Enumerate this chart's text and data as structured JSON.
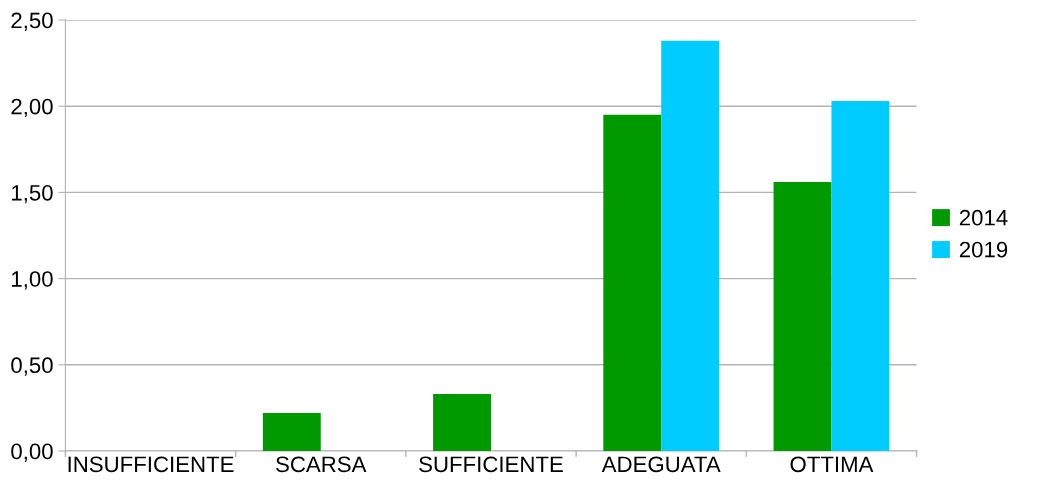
{
  "chart_data": {
    "type": "bar",
    "categories": [
      "INSUFFICIENTE",
      "SCARSA",
      "SUFFICIENTE",
      "ADEGUATA",
      "OTTIMA"
    ],
    "series": [
      {
        "name": "2014",
        "color": "#009900",
        "values": [
          0,
          0.22,
          0.33,
          1.95,
          1.56
        ]
      },
      {
        "name": "2019",
        "color": "#00ccff",
        "values": [
          0,
          0,
          0,
          2.38,
          2.03
        ]
      }
    ],
    "ylim": [
      0,
      2.5
    ],
    "yticks": [
      {
        "value": 0,
        "label": "0,00"
      },
      {
        "value": 0.5,
        "label": "0,50"
      },
      {
        "value": 1,
        "label": "1,00"
      },
      {
        "value": 1.5,
        "label": "1,50"
      },
      {
        "value": 2,
        "label": "2,00"
      },
      {
        "value": 2.5,
        "label": "2,50"
      }
    ],
    "grid": "y",
    "legend": "right"
  }
}
